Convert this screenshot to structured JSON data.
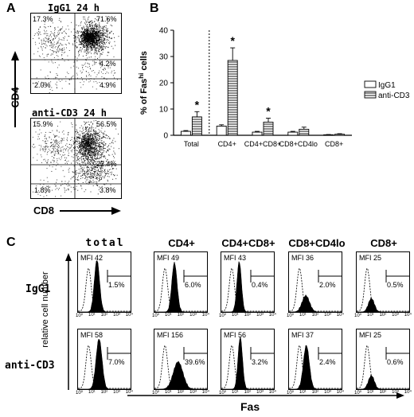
{
  "panels": {
    "a": "A",
    "b": "B",
    "c": "C"
  },
  "panel_a": {
    "y_axis_label": "CD4",
    "x_axis_label": "CD8",
    "plots": [
      {
        "title": "IgG1  24  h",
        "q_ul": "17.3%",
        "q_ur": "71.6%",
        "q_mr": "4.2%",
        "q_ll": "2.0%",
        "q_lr": "4.9%"
      },
      {
        "title": "anti-CD3  24  h",
        "q_ul": "15.9%",
        "q_ur": "56.5%",
        "q_mr": "22.4%",
        "q_ll": "1.8%",
        "q_lr": "3.8%"
      }
    ]
  },
  "chart_data": {
    "type": "bar",
    "ylabel_main": "% of Fas",
    "ylabel_sup": "hi",
    "ylabel_end": " cells",
    "ylim": [
      0,
      40
    ],
    "yticks": [
      0,
      10,
      20,
      30,
      40
    ],
    "categories": [
      "Total",
      "CD4+",
      "CD4+CD8+",
      "CD8+CD4lo",
      "CD8+"
    ],
    "series": [
      {
        "name": "IgG1",
        "values": [
          1.5,
          3.5,
          1.2,
          1.2,
          0.2
        ],
        "errors": [
          0.3,
          0.5,
          0.3,
          0.3,
          0.1
        ]
      },
      {
        "name": "anti-CD3",
        "values": [
          7.0,
          28.5,
          5.0,
          2.3,
          0.4
        ],
        "errors": [
          2.0,
          4.8,
          1.5,
          0.8,
          0.2
        ]
      }
    ],
    "significant": [
      true,
      true,
      true,
      false,
      false
    ],
    "star": "*",
    "legend_position": "right",
    "divider_after_first": true
  },
  "panel_c": {
    "y_axis_label": "relative cell number",
    "x_axis_label": "Fas",
    "columns": [
      "total",
      "CD4+",
      "CD4+CD8+",
      "CD8+CD4lo",
      "CD8+"
    ],
    "rows": [
      {
        "label": "IgG1",
        "mfi": [
          "MFI 42",
          "MFI 49",
          "MFI 43",
          "MFI 36",
          "MFI 25"
        ],
        "pct": [
          "1.5%",
          "6.0%",
          "0.4%",
          "2.0%",
          "0.5%"
        ]
      },
      {
        "label": "anti-CD3",
        "mfi": [
          "MFI 58",
          "MFI 156",
          "MFI 56",
          "MFI 37",
          "MFI 25"
        ],
        "pct": [
          "7.0%",
          "39.6%",
          "3.2%",
          "2.4%",
          "0.6%"
        ]
      }
    ],
    "tick_labels": [
      "10⁰",
      "10¹",
      "10²",
      "10³",
      "10⁴"
    ]
  }
}
